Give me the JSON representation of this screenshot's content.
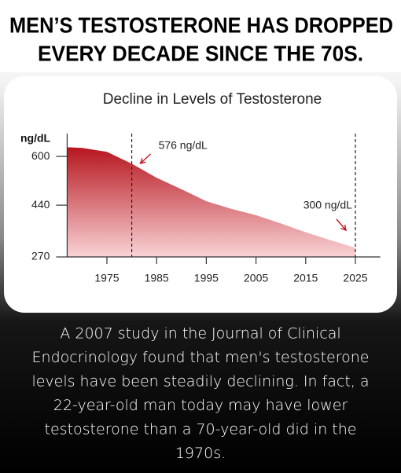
{
  "headline": [
    "MEN’S TESTOSTERONE HAS DROPPED",
    "EVERY DECADE SINCE THE 70S."
  ],
  "chart_data": {
    "type": "area",
    "title": "Decline in Levels of Testosterone",
    "y_label": "ng/dL",
    "x": [
      1967,
      1970,
      1975,
      1980,
      1985,
      1990,
      1995,
      2000,
      2005,
      2010,
      2015,
      2020,
      2025
    ],
    "values": [
      630,
      628,
      615,
      576,
      530,
      492,
      453,
      428,
      407,
      380,
      351,
      325,
      300
    ],
    "color": "#b5121b",
    "xlim": [
      1967,
      2030
    ],
    "xticks": [
      1975,
      1985,
      1995,
      2005,
      2015,
      2025
    ],
    "ylim": [
      270,
      675
    ],
    "yticks": [
      270,
      440,
      600
    ],
    "annotations": [
      {
        "x": 1980,
        "label": "576 ng/dL"
      },
      {
        "x": 2025,
        "label": "300 ng/dL"
      }
    ]
  },
  "caption": [
    "A 2007 study in the Journal of Clinical",
    "Endocrinology found that men's testosterone",
    "levels have been steadily declining. In fact, a",
    "22-year-old man today may have lower",
    "testosterone than a 70-year-old did in the",
    "1970s."
  ]
}
